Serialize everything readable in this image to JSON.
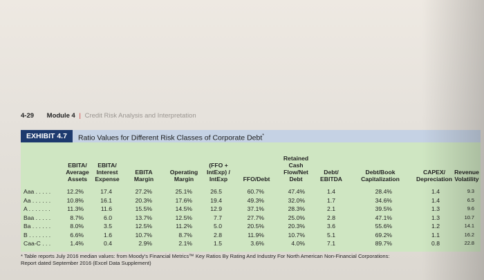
{
  "header": {
    "page_number": "4-29",
    "module": "Module 4",
    "separator": "|",
    "subject": "Credit Risk Analysis and Interpretation"
  },
  "exhibit": {
    "tag": "EXHIBIT 4.7",
    "title": "Ratio Values for Different Risk Classes of Corporate Debt",
    "title_mark": "*"
  },
  "table": {
    "columns": [
      {
        "lines": [
          "EBITA/",
          "Average",
          "Assets"
        ]
      },
      {
        "lines": [
          "EBITA/",
          "Interest",
          "Expense"
        ]
      },
      {
        "lines": [
          "",
          "EBITA",
          "Margin"
        ]
      },
      {
        "lines": [
          "",
          "Operating",
          "Margin"
        ]
      },
      {
        "lines": [
          "(FFO +",
          "IntExp) /",
          "IntExp"
        ]
      },
      {
        "lines": [
          "",
          "",
          "FFO/Debt"
        ]
      },
      {
        "lines": [
          "Retained",
          "Cash",
          "Flow/Net",
          "Debt"
        ]
      },
      {
        "lines": [
          "",
          "Debt/",
          "EBITDA"
        ]
      },
      {
        "lines": [
          "",
          "Debt/Book",
          "Capitalization"
        ]
      },
      {
        "lines": [
          "",
          "CAPEX/",
          "Depreciation"
        ]
      },
      {
        "lines": [
          "",
          "Revenue",
          "Volatility"
        ]
      }
    ],
    "rows": [
      {
        "label": "Aaa . . . . .",
        "values": [
          "12.2%",
          "17.4",
          "27.2%",
          "25.1%",
          "26.5",
          "60.7%",
          "47.4%",
          "1.4",
          "28.4%",
          "1.4",
          "9.3"
        ]
      },
      {
        "label": "Aa . . . . . .",
        "values": [
          "10.8%",
          "16.1",
          "20.3%",
          "17.6%",
          "19.4",
          "49.3%",
          "32.0%",
          "1.7",
          "34.6%",
          "1.4",
          "6.5"
        ]
      },
      {
        "label": "A . . . . . . .",
        "values": [
          "11.3%",
          "11.6",
          "15.5%",
          "14.5%",
          "12.9",
          "37.1%",
          "28.3%",
          "2.1",
          "39.5%",
          "1.3",
          "9.6"
        ]
      },
      {
        "label": "Baa . . . . .",
        "values": [
          "8.7%",
          "6.0",
          "13.7%",
          "12.5%",
          "7.7",
          "27.7%",
          "25.0%",
          "2.8",
          "47.1%",
          "1.3",
          "10.7"
        ]
      },
      {
        "label": "Ba . . . . . .",
        "values": [
          "8.0%",
          "3.5",
          "12.5%",
          "11.2%",
          "5.0",
          "20.5%",
          "20.3%",
          "3.6",
          "55.6%",
          "1.2",
          "14.1"
        ]
      },
      {
        "label": "B . . . . . . .",
        "values": [
          "6.6%",
          "1.6",
          "10.7%",
          "8.7%",
          "2.8",
          "11.9%",
          "10.7%",
          "5.1",
          "69.2%",
          "1.1",
          "16.2"
        ]
      },
      {
        "label": "Caa-C . . .",
        "values": [
          "1.4%",
          "0.4",
          "2.9%",
          "2.1%",
          "1.5",
          "3.6%",
          "4.0%",
          "7.1",
          "89.7%",
          "0.8",
          "22.8"
        ]
      }
    ]
  },
  "footnote": {
    "line1": "* Table reports July 2016 median values: from Moody's Financial Metrics™ Key Ratios By Rating And Industry For North American Non-Financial Corporations:",
    "line2": "Report dated September 2016 (Excel Data Supplement)"
  }
}
